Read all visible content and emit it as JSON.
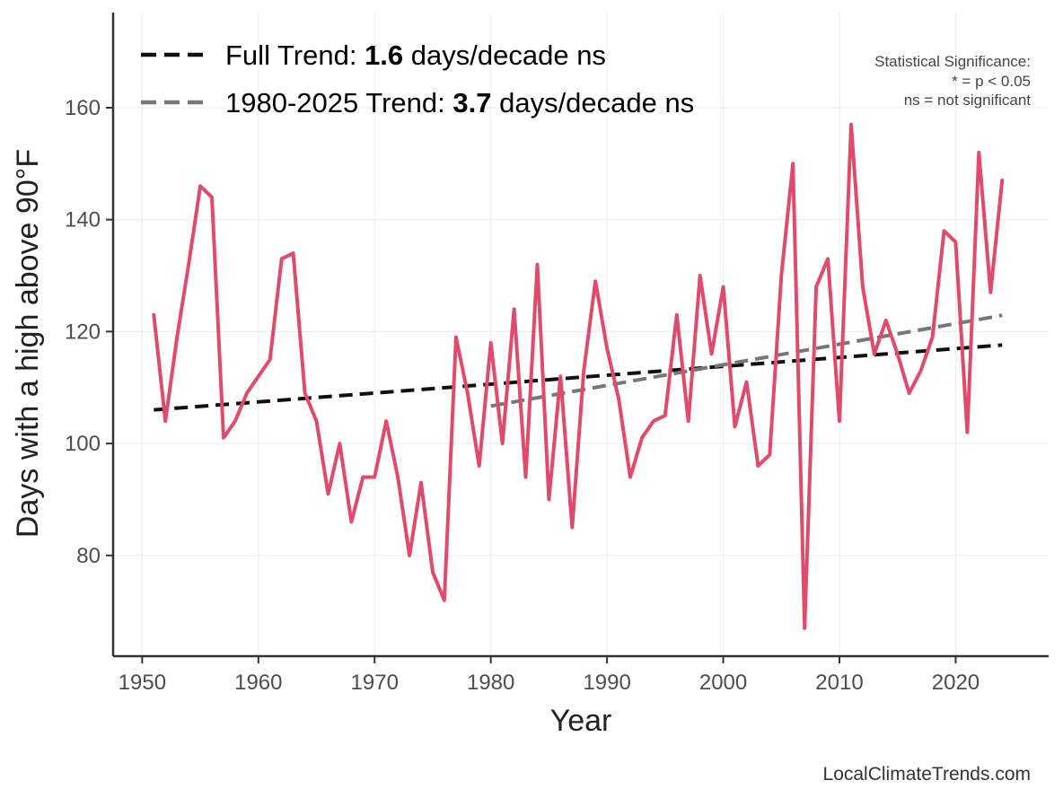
{
  "chart_data": {
    "type": "line",
    "title": "",
    "xlabel": "Year",
    "ylabel": "Days with a high above 90°F",
    "xlim": [
      1947.5,
      2028
    ],
    "ylim": [
      62,
      177
    ],
    "xticks": [
      1950,
      1960,
      1970,
      1980,
      1990,
      2000,
      2010,
      2020
    ],
    "yticks": [
      80,
      100,
      120,
      140,
      160
    ],
    "grid": true,
    "series": [
      {
        "name": "Days with a high above 90°F",
        "color": "#e04b6c",
        "x": [
          1951,
          1952,
          1953,
          1954,
          1955,
          1956,
          1957,
          1958,
          1959,
          1960,
          1961,
          1962,
          1963,
          1964,
          1965,
          1966,
          1967,
          1968,
          1969,
          1970,
          1971,
          1972,
          1973,
          1974,
          1975,
          1976,
          1977,
          1978,
          1979,
          1980,
          1981,
          1982,
          1983,
          1984,
          1985,
          1986,
          1987,
          1988,
          1989,
          1990,
          1991,
          1992,
          1993,
          1994,
          1995,
          1996,
          1997,
          1998,
          1999,
          2000,
          2001,
          2002,
          2003,
          2004,
          2005,
          2006,
          2007,
          2008,
          2009,
          2010,
          2011,
          2012,
          2013,
          2014,
          2015,
          2016,
          2017,
          2018,
          2019,
          2020,
          2021,
          2022,
          2023,
          2024
        ],
        "values": [
          123,
          104,
          119,
          132,
          146,
          144,
          101,
          104,
          109,
          112,
          115,
          133,
          134,
          109,
          104,
          91,
          100,
          86,
          94,
          94,
          104,
          94,
          80,
          93,
          77,
          72,
          119,
          109,
          96,
          118,
          100,
          124,
          94,
          132,
          90,
          112,
          85,
          113,
          129,
          117,
          108,
          94,
          101,
          104,
          105,
          123,
          104,
          130,
          116,
          128,
          103,
          111,
          96,
          98,
          130,
          150,
          67,
          128,
          133,
          104,
          157,
          128,
          116,
          122,
          116,
          109,
          113,
          119,
          138,
          136,
          102,
          152,
          127,
          147
        ]
      }
    ],
    "trends": [
      {
        "name": "Full Trend",
        "legend_prefix": "Full Trend: ",
        "slope": "1.6",
        "legend_suffix": " days/decade ns",
        "color": "#111111",
        "x": [
          1951,
          2024
        ],
        "y": [
          106.0,
          117.6
        ]
      },
      {
        "name": "1980-2025 Trend",
        "legend_prefix": "1980-2025 Trend: ",
        "slope": "3.7",
        "legend_suffix": " days/decade ns",
        "color": "#777777",
        "x": [
          1980,
          2024
        ],
        "y": [
          106.7,
          122.9
        ]
      }
    ],
    "legend_position": "top-left",
    "significance_note": [
      "Statistical Significance:",
      "* = p < 0.05",
      "ns = not significant"
    ],
    "source": "LocalClimateTrends.com"
  }
}
